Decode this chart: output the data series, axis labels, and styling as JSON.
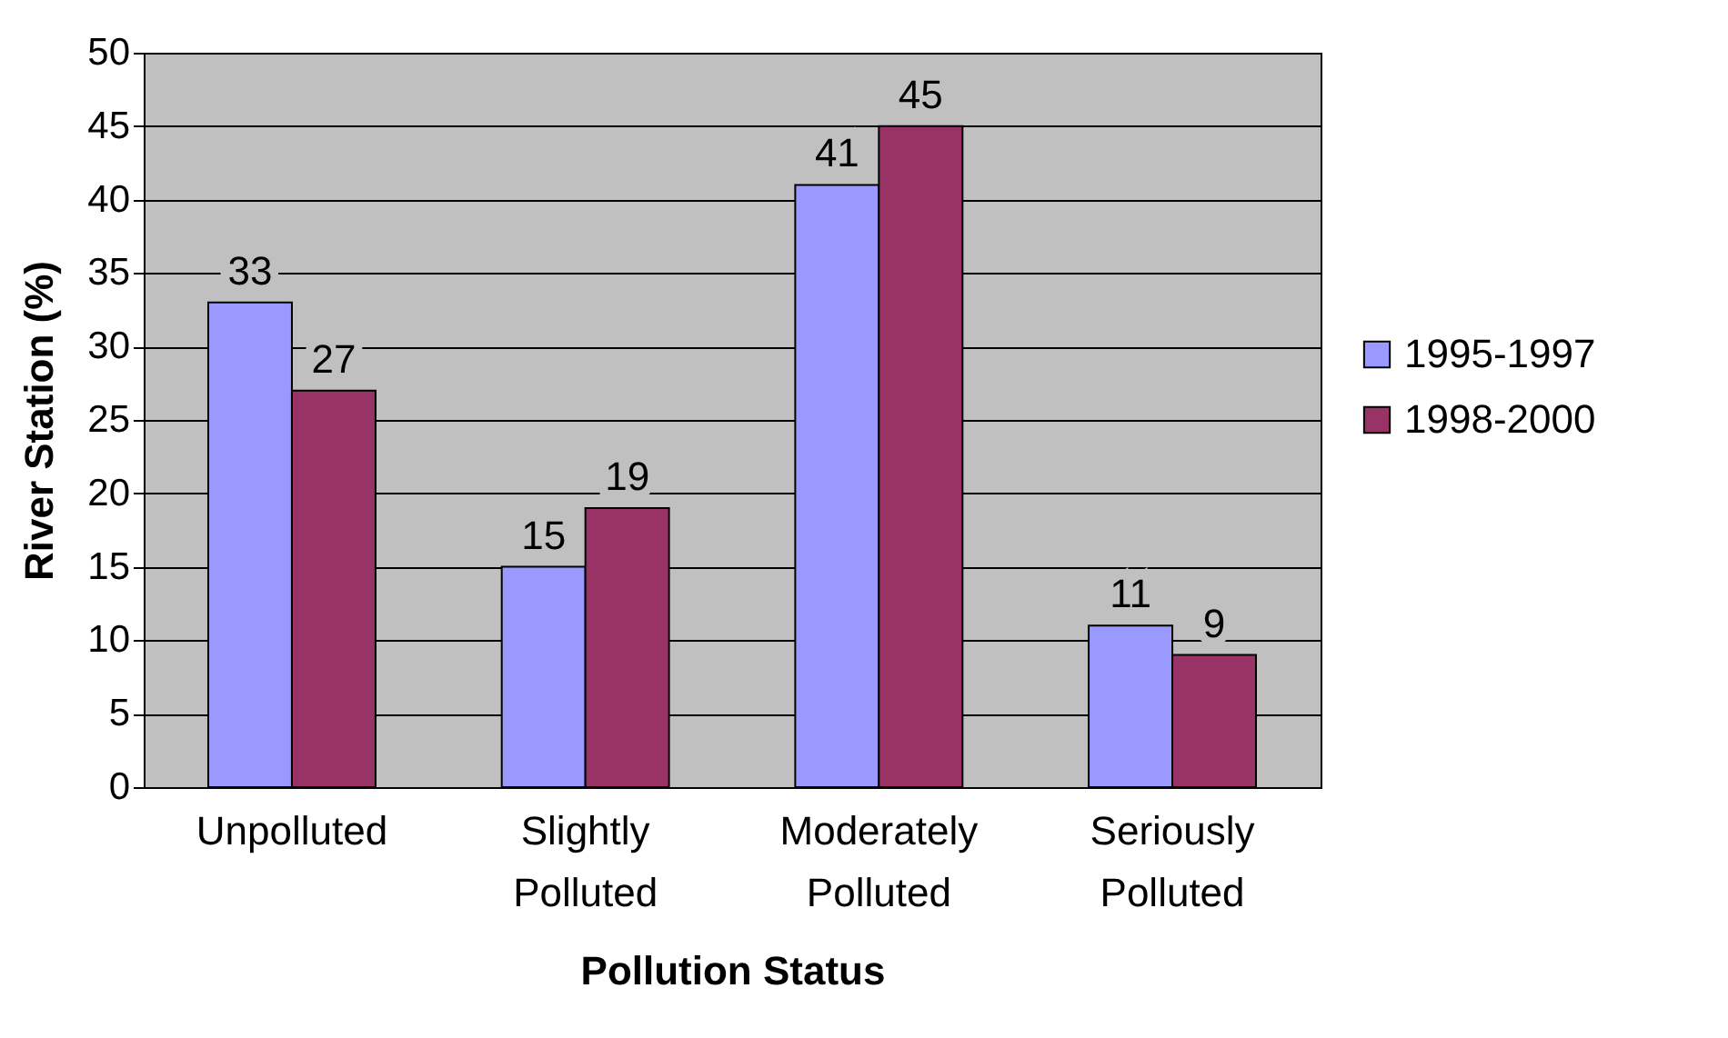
{
  "chart_data": {
    "type": "bar",
    "xlabel": "Pollution Status",
    "ylabel": "River Station (%)",
    "categories": [
      "Unpolluted",
      "Slightly Polluted",
      "Moderately Polluted",
      "Seriously Polluted"
    ],
    "series": [
      {
        "name": "1995-1997",
        "color": "#9999ff",
        "values": [
          33,
          15,
          41,
          11
        ]
      },
      {
        "name": "1998-2000",
        "color": "#993366",
        "values": [
          27,
          19,
          45,
          9
        ]
      }
    ],
    "ylim": [
      0,
      50
    ],
    "yticks": [
      0,
      5,
      10,
      15,
      20,
      25,
      30,
      35,
      40,
      45,
      50
    ],
    "grid": "y",
    "legend": "right",
    "data_labels": true
  }
}
